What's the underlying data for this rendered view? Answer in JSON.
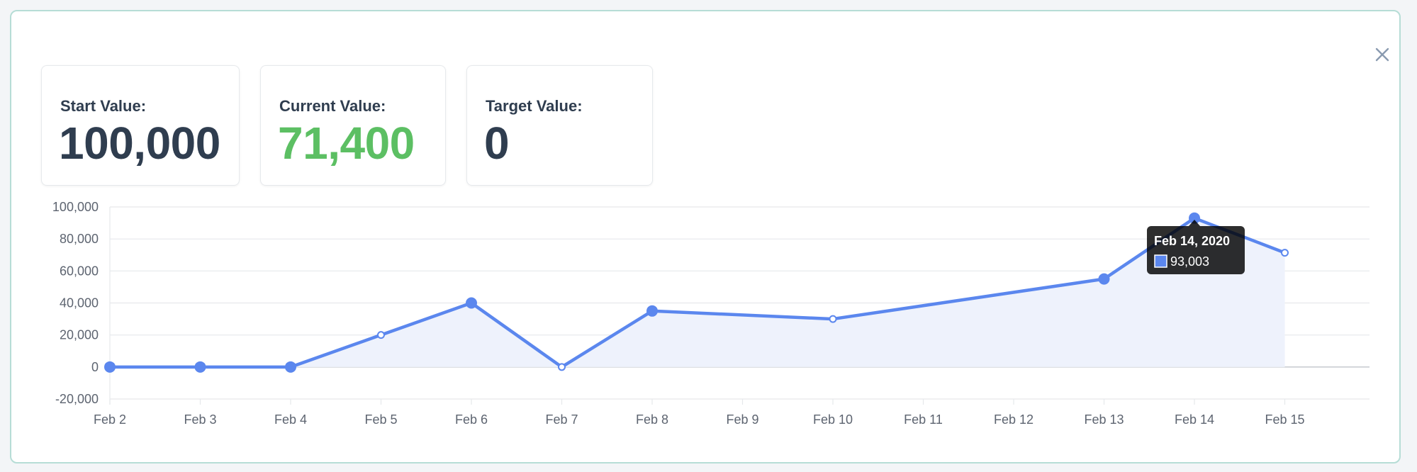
{
  "cards": [
    {
      "label": "Start Value:",
      "value": "100,000"
    },
    {
      "label": "Current Value:",
      "value": "71,400"
    },
    {
      "label": "Target Value:",
      "value": "0"
    }
  ],
  "colors": {
    "line": "#5b87ee",
    "fill": "#eef2fc",
    "positive": "#5cbf63",
    "text": "#2f3d4f"
  },
  "close_icon": "close-icon",
  "chart_data": {
    "type": "line",
    "categories": [
      "Feb 2",
      "Feb 3",
      "Feb 4",
      "Feb 5",
      "Feb 6",
      "Feb 7",
      "Feb 8",
      "Feb 9",
      "Feb 10",
      "Feb 11",
      "Feb 12",
      "Feb 13",
      "Feb 14",
      "Feb 15"
    ],
    "points": [
      {
        "x": "Feb 2",
        "y": 0,
        "marker": "large"
      },
      {
        "x": "Feb 3",
        "y": 0,
        "marker": "large"
      },
      {
        "x": "Feb 4",
        "y": 0,
        "marker": "large"
      },
      {
        "x": "Feb 5",
        "y": 20000,
        "marker": "small"
      },
      {
        "x": "Feb 6",
        "y": 40000,
        "marker": "large"
      },
      {
        "x": "Feb 7",
        "y": 0,
        "marker": "small"
      },
      {
        "x": "Feb 8",
        "y": 35000,
        "marker": "large"
      },
      {
        "x": "Feb 10",
        "y": 30000,
        "marker": "small"
      },
      {
        "x": "Feb 13",
        "y": 55000,
        "marker": "large"
      },
      {
        "x": "Feb 14",
        "y": 93003,
        "marker": "large"
      },
      {
        "x": "Feb 15",
        "y": 71400,
        "marker": "small"
      }
    ],
    "ylim": [
      -20000,
      100000
    ],
    "yticks": [
      100000,
      80000,
      60000,
      40000,
      20000,
      0,
      -20000
    ],
    "ytick_labels": [
      "100,000",
      "80,000",
      "60,000",
      "40,000",
      "20,000",
      "0",
      "-20,000"
    ],
    "grid": true,
    "fill_area": true,
    "tooltip": {
      "title": "Feb 14, 2020",
      "value": "93,003",
      "x": "Feb 14"
    }
  }
}
